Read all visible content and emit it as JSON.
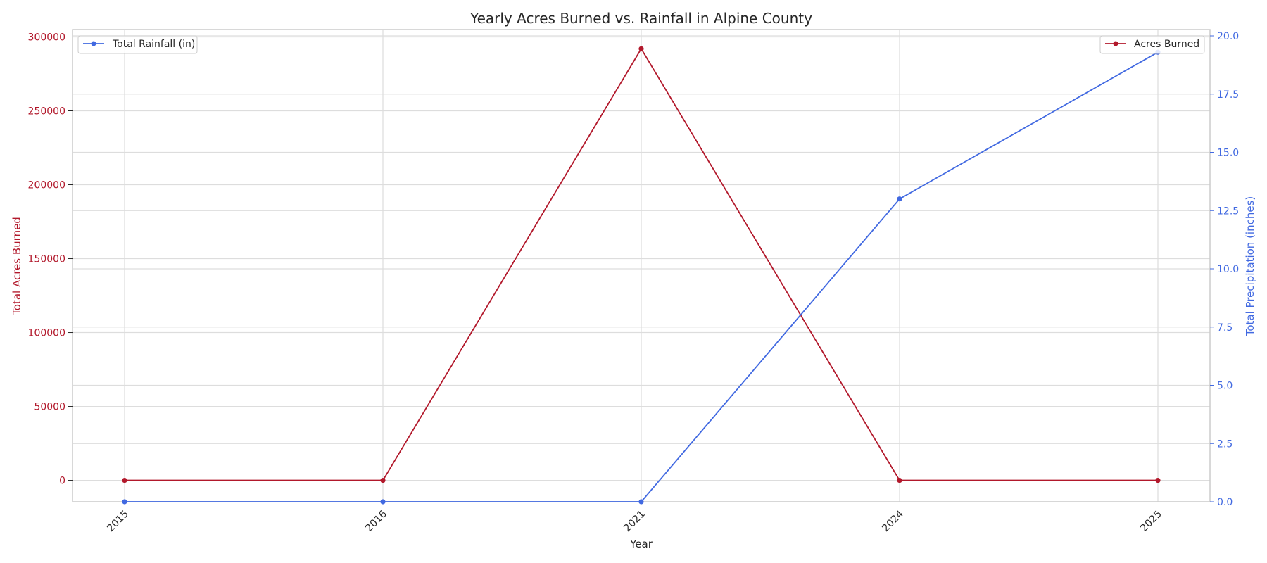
{
  "chart_data": {
    "type": "line",
    "title": "Yearly Acres Burned vs. Rainfall in Alpine County",
    "xlabel": "Year",
    "categories": [
      "2015",
      "2016",
      "2021",
      "2024",
      "2025"
    ],
    "y_left": {
      "label": "Total Acres Burned",
      "ticks": [
        0,
        50000,
        100000,
        150000,
        200000,
        250000,
        300000
      ],
      "range": [
        -14500,
        305000
      ],
      "color": "#b2182b"
    },
    "y_right": {
      "label": "Total Precipitation (inches)",
      "ticks": [
        "0.0",
        "2.5",
        "5.0",
        "7.5",
        "10.0",
        "12.5",
        "15.0",
        "17.5",
        "20.0"
      ],
      "range": [
        0,
        20
      ],
      "color": "#4169e1"
    },
    "series": [
      {
        "name": "Acres Burned",
        "axis": "left",
        "color": "#b2182b",
        "values": [
          0,
          0,
          292000,
          0,
          0
        ]
      },
      {
        "name": "Total Rainfall (in)",
        "axis": "right",
        "color": "#4169e1",
        "values": [
          0,
          0,
          0,
          13.0,
          19.3
        ]
      }
    ],
    "grid": true,
    "legend": [
      {
        "series": "Total Rainfall (in)",
        "position": "top-left"
      },
      {
        "series": "Acres Burned",
        "position": "top-right"
      }
    ]
  }
}
